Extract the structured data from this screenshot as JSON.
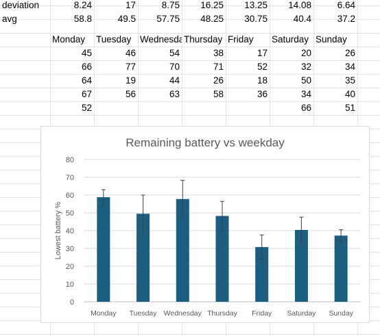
{
  "sheet": {
    "rows": [
      {
        "label": "deviation",
        "values": [
          "8.24",
          "17",
          "8.75",
          "16.25",
          "13.25",
          "14.08",
          "6.64"
        ]
      },
      {
        "label": "avg",
        "values": [
          "58.8",
          "49.5",
          "57.75",
          "48.25",
          "30.75",
          "40.4",
          "37.2"
        ]
      }
    ],
    "headers": [
      "Monday",
      "Tuesday",
      "Wednesday",
      "Thursday",
      "Friday",
      "Saturday",
      "Sunday"
    ],
    "data": [
      [
        "45",
        "46",
        "54",
        "38",
        "17",
        "20",
        "26"
      ],
      [
        "66",
        "77",
        "70",
        "71",
        "52",
        "32",
        "34"
      ],
      [
        "64",
        "19",
        "44",
        "26",
        "18",
        "50",
        "35"
      ],
      [
        "67",
        "56",
        "63",
        "58",
        "36",
        "34",
        "40"
      ],
      [
        "52",
        "",
        "",
        "",
        "",
        "66",
        "51"
      ]
    ]
  },
  "chart_data": {
    "type": "bar",
    "title": "Remaining battery vs weekday",
    "xlabel": "",
    "ylabel": "Lowest battery %",
    "categories": [
      "Monday",
      "Tuesday",
      "Wednesday",
      "Thursday",
      "Friday",
      "Saturday",
      "Sunday"
    ],
    "values": [
      58.8,
      49.5,
      57.75,
      48.25,
      30.75,
      40.4,
      37.2
    ],
    "error": [
      4.2,
      10.5,
      10.5,
      8.2,
      6.8,
      7.2,
      3.3
    ],
    "yticks": [
      "0",
      "10",
      "20",
      "30",
      "40",
      "50",
      "60",
      "70",
      "80"
    ],
    "ylim": [
      0,
      80
    ],
    "grid": true,
    "legend": "none",
    "bar_color": "#1b5e80"
  }
}
